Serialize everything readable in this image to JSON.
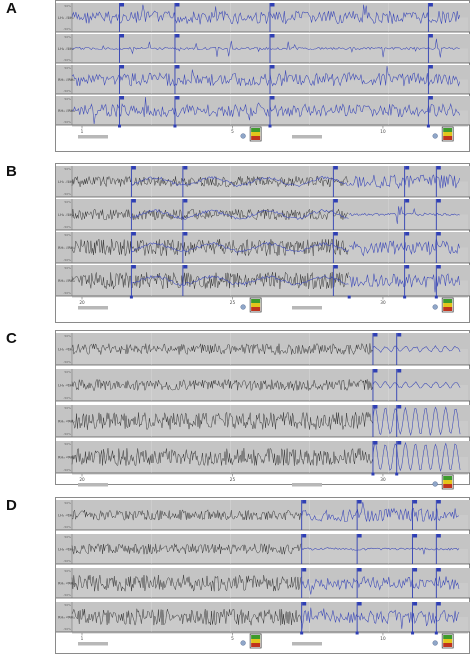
{
  "panels": [
    {
      "letter": "A",
      "channels": [
        "LH₁ - LH₂",
        "LH₃ - LH₄",
        "RH₁ - RH₂",
        "RH₃ - RH₄"
      ],
      "amp_ticks": [
        "50%",
        "0%",
        "-50%"
      ],
      "time_ticks": [
        "1",
        "5",
        "10"
      ],
      "segments": [
        {
          "start": 0.0,
          "end": 0.12,
          "color": "#3a47b8",
          "style": "spiky"
        },
        {
          "start": 0.12,
          "end": 0.5,
          "color": "#3a47b8",
          "style": "spiky"
        },
        {
          "start": 0.5,
          "end": 0.98,
          "color": "#3a47b8",
          "style": "spiky"
        }
      ],
      "markers": [
        0.12,
        0.26,
        0.5,
        0.9
      ],
      "gutter_squares": [
        0.12,
        0.26,
        0.5,
        0.9
      ]
    },
    {
      "letter": "B",
      "channels": [
        "LH₁ - LH₂",
        "LH₃ - LH₄",
        "RH₁ - RH₂",
        "RH₃ - RH₄"
      ],
      "amp_ticks": [
        "50%",
        "0%",
        "-50%"
      ],
      "time_ticks": [
        "20",
        "25",
        "30"
      ],
      "segments": [
        {
          "start": 0.0,
          "end": 0.15,
          "color": "#2a2a2a",
          "style": "dense"
        },
        {
          "start": 0.15,
          "end": 0.7,
          "color": "#2a2a2a",
          "style": "dense"
        },
        {
          "start": 0.15,
          "end": 0.7,
          "color": "#3a47b8",
          "style": "slow"
        },
        {
          "start": 0.7,
          "end": 0.98,
          "color": "#3a47b8",
          "style": "spiky"
        }
      ],
      "markers": [
        0.15,
        0.28,
        0.66,
        0.84,
        0.92
      ],
      "gutter_squares": [
        0.15,
        0.7,
        0.84,
        0.92
      ]
    },
    {
      "letter": "C",
      "channels": [
        "LH₁ - LH₂",
        "LH₃ - LH₄",
        "RH₁ - RH₂",
        "RH₃ - RH₄"
      ],
      "amp_ticks": [
        "50%",
        "0%",
        "-50%"
      ],
      "time_ticks": [
        "20",
        "25",
        "30"
      ],
      "segments": [
        {
          "start": 0.0,
          "end": 0.76,
          "color": "#2a2a2a",
          "style": "dense"
        },
        {
          "start": 0.76,
          "end": 0.98,
          "color": "#3a47b8",
          "style": "oscillating"
        }
      ],
      "markers": [
        0.76,
        0.82
      ],
      "gutter_squares": [
        0.76,
        0.82
      ]
    },
    {
      "letter": "D",
      "channels": [
        "LH₁ - LH₂",
        "LH₃ - LH₄",
        "RH₁ - RH₂",
        "RH₃ - RH₄"
      ],
      "amp_ticks": [
        "50%",
        "0%",
        "-50%"
      ],
      "time_ticks": [
        "1",
        "5",
        "10"
      ],
      "segments": [
        {
          "start": 0.0,
          "end": 0.58,
          "color": "#2a2a2a",
          "style": "dense"
        },
        {
          "start": 0.58,
          "end": 0.98,
          "color": "#3a47b8",
          "style": "spiky"
        }
      ],
      "markers": [
        0.58,
        0.72,
        0.86,
        0.92
      ],
      "gutter_squares": [
        0.58,
        0.72,
        0.86,
        0.92
      ]
    }
  ],
  "colors": {
    "trace_black": "#2a2a2a",
    "trace_blue": "#3a47b8",
    "marker_blue": "#2f3fb4",
    "strip_bg": "#c4c4c4",
    "strip_alt_bg": "#d8d8d8",
    "icon_green": "#3e9b2c",
    "icon_red": "#c0341d",
    "icon_yellow": "#e3c51b",
    "scrollbar": "#b8b8b8"
  },
  "icons": [
    "seizure-spectrum-icon",
    "info-circle-icon"
  ]
}
